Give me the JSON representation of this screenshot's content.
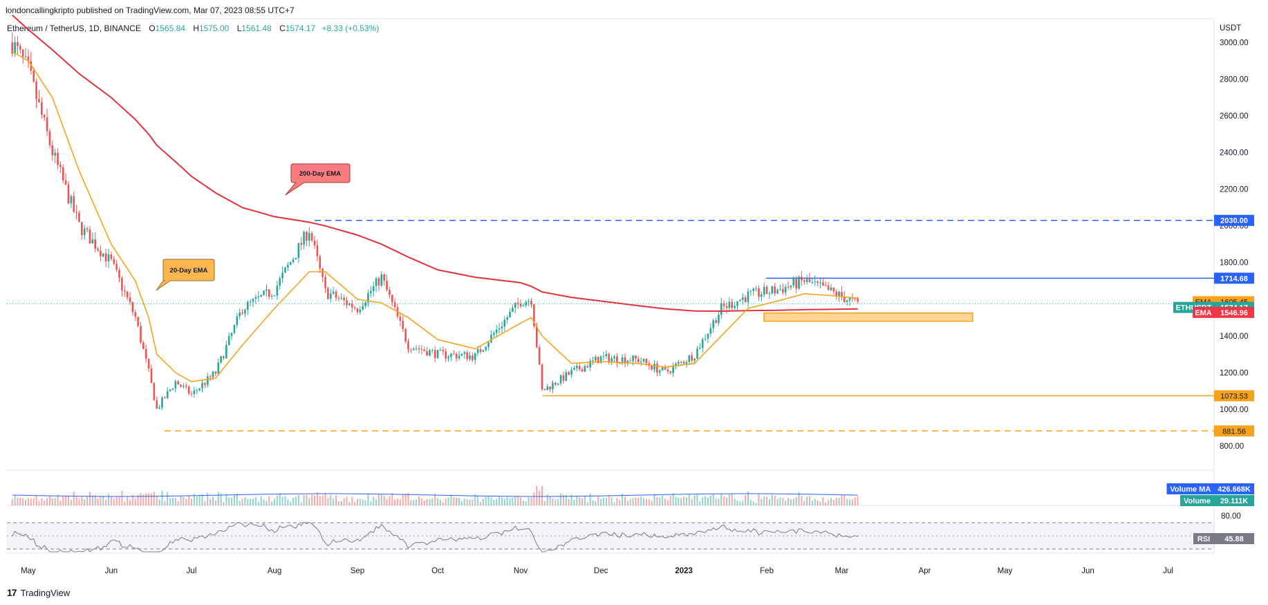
{
  "header": {
    "published": "londoncallingkripto published on TradingView.com, Mar 07, 2023 08:55 UTC+7"
  },
  "legend": {
    "symbol": "Ethereum / TetherUS, 1D, BINANCE",
    "o_label": "O",
    "o": "1565.84",
    "h_label": "H",
    "h": "1575.00",
    "l_label": "L",
    "l": "1561.48",
    "c_label": "C",
    "c": "1574.17",
    "change": "+8.33 (+0.53%)"
  },
  "price_axis": {
    "unit": "USDT",
    "ticks": [
      "3000.00",
      "2800.00",
      "2600.00",
      "2400.00",
      "2200.00",
      "2000.00",
      "1800.00",
      "1600.00",
      "1400.00",
      "1200.00",
      "1000.00",
      "800.00"
    ]
  },
  "price_tags": [
    {
      "label": "2030.00",
      "color": "#2962ff"
    },
    {
      "label": "1714.68",
      "color": "#2962ff"
    },
    {
      "name": "EMA",
      "label": "1605.45",
      "color": "#f7a21b"
    },
    {
      "name": "ETHUSDT",
      "label": "1574.17",
      "color": "#26a69a"
    },
    {
      "name": "EMA",
      "label": "1546.96",
      "color": "#f23645"
    },
    {
      "label": "1073.53",
      "color": "#f7a21b"
    },
    {
      "label": "881.56",
      "color": "#f7a21b"
    }
  ],
  "volume_tags": [
    {
      "name": "Volume MA",
      "label": "426.668K",
      "color": "#2962ff"
    },
    {
      "name": "Volume",
      "label": "29.111K",
      "color": "#26a69a"
    }
  ],
  "rsi": {
    "name": "RSI",
    "label": "45.88",
    "tick": "80.00",
    "color": "#787b86"
  },
  "callouts": {
    "ema200": "200-Day EMA",
    "ema20": "20-Day EMA"
  },
  "time_axis": [
    "May",
    "Jun",
    "Jul",
    "Aug",
    "Sep",
    "Oct",
    "Nov",
    "Dec",
    "2023",
    "Feb",
    "Mar",
    "Apr",
    "May",
    "Jun",
    "Jul"
  ],
  "footer": {
    "brand": "TradingView"
  },
  "colors": {
    "up": "#26a69a",
    "down": "#ef5350",
    "ema20": "#f7a21b",
    "ema200": "#e5303b",
    "blue": "#2962ff",
    "orange": "#f7a21b",
    "rsi": "#787b86"
  },
  "chart_data": {
    "type": "line",
    "title": "Ethereum / TetherUS, 1D, BINANCE",
    "x": [
      "2022-04-25",
      "2022-05-01",
      "2022-05-10",
      "2022-05-20",
      "2022-06-01",
      "2022-06-10",
      "2022-06-15",
      "2022-06-18",
      "2022-06-25",
      "2022-07-01",
      "2022-07-10",
      "2022-07-20",
      "2022-08-01",
      "2022-08-14",
      "2022-08-20",
      "2022-09-01",
      "2022-09-10",
      "2022-09-20",
      "2022-10-01",
      "2022-10-15",
      "2022-11-01",
      "2022-11-05",
      "2022-11-09",
      "2022-11-20",
      "2022-12-01",
      "2022-12-15",
      "2022-12-25",
      "2023-01-05",
      "2023-01-15",
      "2023-01-25",
      "2023-02-05",
      "2023-02-15",
      "2023-02-25",
      "2023-03-07"
    ],
    "series": [
      {
        "name": "ETHUSDT",
        "values": [
          3000,
          2850,
          2400,
          2000,
          1800,
          1500,
          1200,
          1000,
          1150,
          1080,
          1200,
          1550,
          1650,
          1980,
          1640,
          1550,
          1720,
          1350,
          1300,
          1290,
          1590,
          1600,
          1100,
          1200,
          1280,
          1270,
          1200,
          1300,
          1550,
          1620,
          1650,
          1700,
          1640,
          1574.17
        ]
      },
      {
        "name": "EMA",
        "values": [
          2950,
          2900,
          2700,
          2300,
          1900,
          1700,
          1500,
          1300,
          1200,
          1150,
          1170,
          1350,
          1550,
          1750,
          1750,
          1600,
          1580,
          1500,
          1380,
          1330,
          1470,
          1500,
          1400,
          1250,
          1260,
          1250,
          1230,
          1250,
          1400,
          1550,
          1590,
          1630,
          1620,
          1605.45
        ]
      },
      {
        "name": "EMA",
        "values": [
          3150,
          3070,
          2960,
          2830,
          2700,
          2580,
          2500,
          2440,
          2350,
          2270,
          2180,
          2100,
          2050,
          2020,
          2000,
          1950,
          1900,
          1830,
          1760,
          1720,
          1690,
          1670,
          1640,
          1610,
          1590,
          1565,
          1548,
          1536,
          1535,
          1538,
          1540,
          1543,
          1545,
          1546.96
        ]
      }
    ],
    "levels": [
      2030.0,
      1714.68,
      1073.53,
      881.56
    ],
    "zone": [
      1480,
      1525
    ],
    "ylabel": "USDT",
    "ylim": [
      720,
      3100
    ]
  }
}
